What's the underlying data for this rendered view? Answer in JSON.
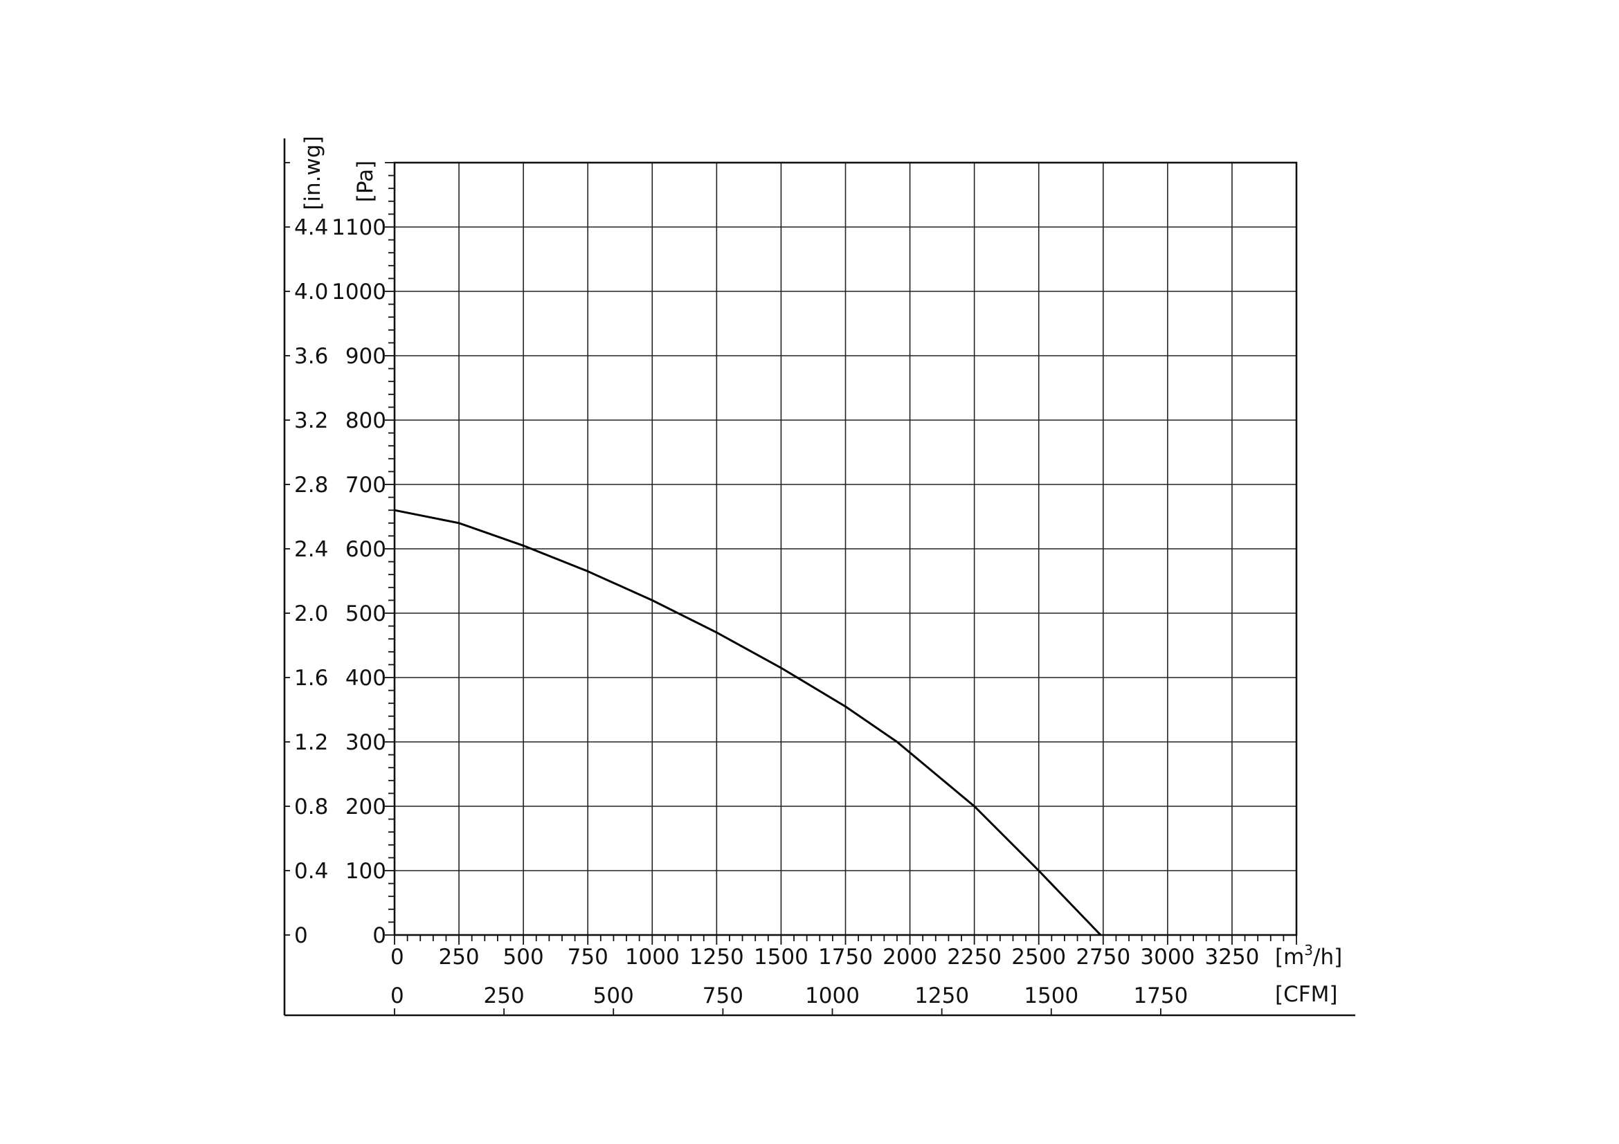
{
  "chart_data": {
    "type": "line",
    "title": "",
    "xlabel": "",
    "ylabel": "",
    "grid": true,
    "x_axis_primary": {
      "unit_label_base": "[m",
      "unit_label_sup": "3",
      "unit_label_tail": "/h]",
      "range": [
        0,
        3500
      ],
      "ticks": [
        0,
        250,
        500,
        750,
        1000,
        1250,
        1500,
        1750,
        2000,
        2250,
        2500,
        2750,
        3000,
        3250
      ],
      "tick_labels": [
        "0",
        "250",
        "500",
        "750",
        "1000",
        "1250",
        "1500",
        "1750",
        "2000",
        "2250",
        "2500",
        "2750",
        "3000",
        "3250"
      ]
    },
    "x_axis_secondary": {
      "unit_label": "[CFM]",
      "ticks_cfm": [
        0,
        250,
        500,
        750,
        1000,
        1250,
        1500,
        1750
      ],
      "tick_labels": [
        "0",
        "250",
        "500",
        "750",
        "1000",
        "1250",
        "1500",
        "1750"
      ]
    },
    "y_axis_pa": {
      "unit_label": "[Pa]",
      "range": [
        0,
        1200
      ],
      "ticks": [
        0,
        100,
        200,
        300,
        400,
        500,
        600,
        700,
        800,
        900,
        1000,
        1100
      ],
      "tick_labels": [
        "0",
        "100",
        "200",
        "300",
        "400",
        "500",
        "600",
        "700",
        "800",
        "900",
        "1000",
        "1100"
      ]
    },
    "y_axis_inwg": {
      "unit_label": "[in.wg]",
      "tick_labels": [
        "0",
        "0.4",
        "0.8",
        "1.2",
        "1.6",
        "2.0",
        "2.4",
        "2.8",
        "3.2",
        "3.6",
        "4.0",
        "4.4"
      ]
    },
    "series": [
      {
        "color": "#000000",
        "x": [
          0,
          250,
          500,
          750,
          1000,
          1250,
          1500,
          1750,
          1950,
          2100,
          2250,
          2500,
          2740
        ],
        "y": [
          660,
          640,
          605,
          565,
          520,
          470,
          415,
          355,
          300,
          250,
          200,
          100,
          0
        ]
      }
    ]
  }
}
